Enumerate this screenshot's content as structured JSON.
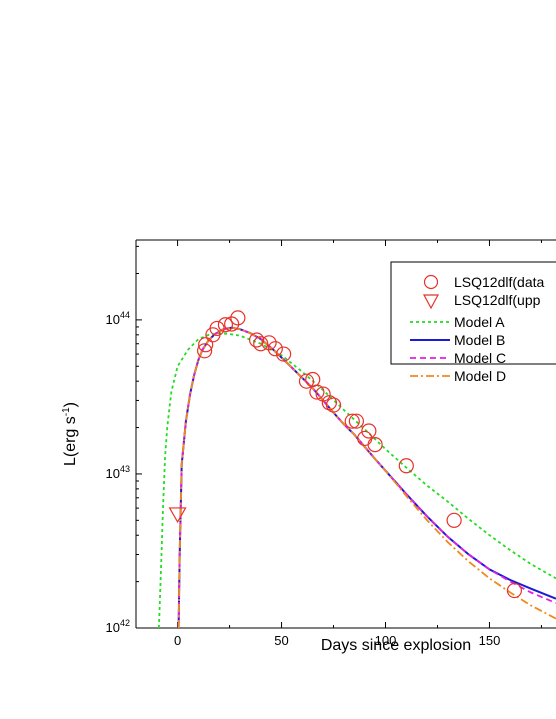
{
  "chart_data": {
    "type": "line",
    "xlabel": "Days since explosion",
    "ylabel_main": "L(erg s",
    "ylabel_sup": "-1",
    "ylabel_close": ")",
    "x_ticks": [
      0,
      50,
      100,
      150
    ],
    "x_tick_labels": [
      "0",
      "50",
      "100",
      "150"
    ],
    "y_ticks": [
      {
        "value": 1e+42,
        "base": "10",
        "exp": "42"
      },
      {
        "value": 1e+43,
        "base": "10",
        "exp": "43"
      },
      {
        "value": 1e+44,
        "base": "10",
        "exp": "44"
      }
    ],
    "xlim": [
      -20,
      182
    ],
    "ylim": [
      1e+42,
      3.3e+44
    ],
    "y_scale": "log",
    "legend_position": "top-right",
    "observed": {
      "name": "LSQ12dlf(data",
      "color": "#e8312a",
      "points": [
        [
          13,
          6.3e+43
        ],
        [
          13.5,
          6.9e+43
        ],
        [
          17,
          8e+43
        ],
        [
          19,
          8.8e+43
        ],
        [
          23,
          9.3e+43
        ],
        [
          26,
          9.4e+43
        ],
        [
          29,
          1.03e+44
        ],
        [
          38,
          7.4e+43
        ],
        [
          40,
          7e+43
        ],
        [
          44,
          7.1e+43
        ],
        [
          47,
          6.5e+43
        ],
        [
          51,
          6e+43
        ],
        [
          62,
          4e+43
        ],
        [
          65,
          4.1e+43
        ],
        [
          67,
          3.4e+43
        ],
        [
          70,
          3.3e+43
        ],
        [
          73,
          2.9e+43
        ],
        [
          75,
          2.8e+43
        ],
        [
          84,
          2.2e+43
        ],
        [
          86,
          2.2e+43
        ],
        [
          90,
          1.7e+43
        ],
        [
          92,
          1.9e+43
        ],
        [
          95,
          1.55e+43
        ],
        [
          110,
          1.13e+43
        ],
        [
          133,
          5e+42
        ],
        [
          162,
          1.75e+42
        ]
      ]
    },
    "upper_limit": {
      "name": "LSQ12dlf(upp",
      "color": "#e8312a",
      "points": [
        [
          0,
          5.5e+42
        ]
      ]
    },
    "series": [
      {
        "name": "Model A",
        "color": "#22dd22",
        "dash": "3,3",
        "points": [
          [
            -9,
            1e+42
          ],
          [
            -8,
            2.4e+42
          ],
          [
            -7,
            6e+42
          ],
          [
            -6,
            1.3e+43
          ],
          [
            -5,
            2e+43
          ],
          [
            -3,
            3.4e+43
          ],
          [
            0,
            5e+43
          ],
          [
            5,
            6.4e+43
          ],
          [
            10,
            7.5e+43
          ],
          [
            15,
            8e+43
          ],
          [
            20,
            8.2e+43
          ],
          [
            25,
            8.1e+43
          ],
          [
            30,
            7.9e+43
          ],
          [
            40,
            7e+43
          ],
          [
            50,
            5.9e+43
          ],
          [
            60,
            4.6e+43
          ],
          [
            70,
            3.5e+43
          ],
          [
            80,
            2.6e+43
          ],
          [
            90,
            1.95e+43
          ],
          [
            100,
            1.45e+43
          ],
          [
            110,
            1.1e+43
          ],
          [
            120,
            8.4e+42
          ],
          [
            130,
            6.6e+42
          ],
          [
            140,
            5.1e+42
          ],
          [
            150,
            4e+42
          ],
          [
            160,
            3.2e+42
          ],
          [
            170,
            2.6e+42
          ],
          [
            182,
            2.1e+42
          ]
        ]
      },
      {
        "name": "Model B",
        "color": "#1b1bd6",
        "dash": "",
        "points": [
          [
            0.5,
            1e+42
          ],
          [
            1,
            3e+42
          ],
          [
            2,
            1.15e+43
          ],
          [
            4,
            2.2e+43
          ],
          [
            6,
            3.3e+43
          ],
          [
            8,
            4.4e+43
          ],
          [
            10,
            5.5e+43
          ],
          [
            12,
            6.4e+43
          ],
          [
            15,
            7.4e+43
          ],
          [
            18,
            8.1e+43
          ],
          [
            22,
            8.7e+43
          ],
          [
            26,
            8.9e+43
          ],
          [
            30,
            8.7e+43
          ],
          [
            35,
            8.2e+43
          ],
          [
            40,
            7.5e+43
          ],
          [
            45,
            6.6e+43
          ],
          [
            50,
            5.7e+43
          ],
          [
            55,
            4.9e+43
          ],
          [
            60,
            4.2e+43
          ],
          [
            65,
            3.6e+43
          ],
          [
            70,
            3e+43
          ],
          [
            75,
            2.5e+43
          ],
          [
            80,
            2.1e+43
          ],
          [
            85,
            1.8e+43
          ],
          [
            90,
            1.5e+43
          ],
          [
            95,
            1.25e+43
          ],
          [
            100,
            1.05e+43
          ],
          [
            110,
            7.4e+42
          ],
          [
            120,
            5.3e+42
          ],
          [
            130,
            3.9e+42
          ],
          [
            140,
            3e+42
          ],
          [
            150,
            2.4e+42
          ],
          [
            160,
            2.05e+42
          ],
          [
            170,
            1.8e+42
          ],
          [
            182,
            1.55e+42
          ]
        ]
      },
      {
        "name": "Model C",
        "color": "#e020e0",
        "dash": "6,4",
        "points": [
          [
            0.5,
            1e+42
          ],
          [
            1,
            3e+42
          ],
          [
            2,
            1.15e+43
          ],
          [
            4,
            2.2e+43
          ],
          [
            6,
            3.3e+43
          ],
          [
            8,
            4.4e+43
          ],
          [
            10,
            5.5e+43
          ],
          [
            12,
            6.4e+43
          ],
          [
            15,
            7.4e+43
          ],
          [
            18,
            8.1e+43
          ],
          [
            22,
            8.7e+43
          ],
          [
            26,
            8.9e+43
          ],
          [
            30,
            8.7e+43
          ],
          [
            35,
            8.2e+43
          ],
          [
            40,
            7.5e+43
          ],
          [
            45,
            6.6e+43
          ],
          [
            50,
            5.7e+43
          ],
          [
            55,
            4.9e+43
          ],
          [
            60,
            4.2e+43
          ],
          [
            65,
            3.6e+43
          ],
          [
            70,
            3e+43
          ],
          [
            75,
            2.5e+43
          ],
          [
            80,
            2.1e+43
          ],
          [
            85,
            1.8e+43
          ],
          [
            90,
            1.5e+43
          ],
          [
            95,
            1.25e+43
          ],
          [
            100,
            1.05e+43
          ],
          [
            110,
            7.4e+42
          ],
          [
            120,
            5.3e+42
          ],
          [
            130,
            3.9e+42
          ],
          [
            140,
            3e+42
          ],
          [
            150,
            2.4e+42
          ],
          [
            160,
            2e+42
          ],
          [
            170,
            1.7e+42
          ],
          [
            182,
            1.45e+42
          ]
        ]
      },
      {
        "name": "Model D",
        "color": "#f08a1c",
        "dash": "8,3,2,3",
        "points": [
          [
            0.5,
            1e+42
          ],
          [
            1,
            3e+42
          ],
          [
            2,
            1.15e+43
          ],
          [
            4,
            2.2e+43
          ],
          [
            6,
            3.3e+43
          ],
          [
            8,
            4.4e+43
          ],
          [
            10,
            5.5e+43
          ],
          [
            12,
            6.4e+43
          ],
          [
            15,
            7.4e+43
          ],
          [
            18,
            8.1e+43
          ],
          [
            22,
            8.7e+43
          ],
          [
            26,
            8.9e+43
          ],
          [
            30,
            8.7e+43
          ],
          [
            35,
            8.2e+43
          ],
          [
            40,
            7.5e+43
          ],
          [
            45,
            6.6e+43
          ],
          [
            50,
            5.7e+43
          ],
          [
            55,
            4.9e+43
          ],
          [
            60,
            4.2e+43
          ],
          [
            65,
            3.6e+43
          ],
          [
            70,
            3e+43
          ],
          [
            75,
            2.5e+43
          ],
          [
            80,
            2.1e+43
          ],
          [
            85,
            1.8e+43
          ],
          [
            90,
            1.5e+43
          ],
          [
            95,
            1.25e+43
          ],
          [
            100,
            1.05e+43
          ],
          [
            110,
            7.2e+42
          ],
          [
            120,
            5e+42
          ],
          [
            130,
            3.6e+42
          ],
          [
            140,
            2.7e+42
          ],
          [
            150,
            2.1e+42
          ],
          [
            160,
            1.7e+42
          ],
          [
            170,
            1.4e+42
          ],
          [
            182,
            1.15e+42
          ]
        ]
      }
    ]
  }
}
